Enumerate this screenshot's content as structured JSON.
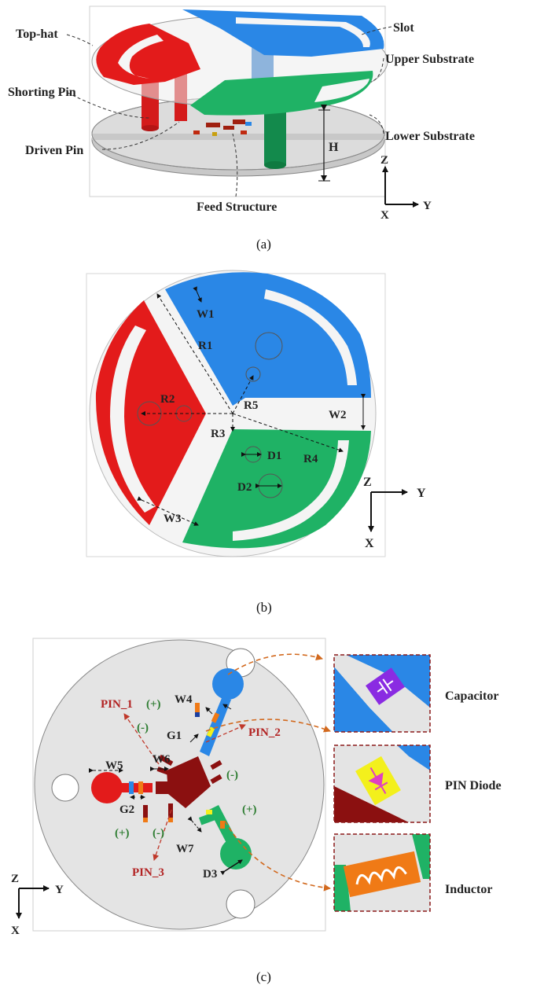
{
  "panel_a": {
    "labels": {
      "top_hat": "Top-hat",
      "slot": "Slot",
      "upper_substrate": "Upper Substrate",
      "shorting_pin": "Shorting Pin",
      "lower_substrate": "Lower Substrate",
      "driven_pin": "Driven Pin",
      "h": "H",
      "feed_structure": "Feed Structure"
    },
    "axes": {
      "z": "Z",
      "x": "X",
      "y": "Y"
    },
    "caption": "(a)"
  },
  "panel_b": {
    "labels": {
      "w1": "W1",
      "r1": "R1",
      "r2": "R2",
      "r5": "R5",
      "w2": "W2",
      "r3": "R3",
      "d1": "D1",
      "r4": "R4",
      "d2": "D2",
      "w3": "W3"
    },
    "axes": {
      "z": "Z",
      "y": "Y",
      "x": "X"
    },
    "caption": "(b)"
  },
  "panel_c": {
    "labels": {
      "pin_1": "PIN_1",
      "plus_1": "(+)",
      "w4": "W4",
      "pin_2": "PIN_2",
      "minus_1": "(-)",
      "g1": "G1",
      "w5": "W5",
      "w6": "W6",
      "minus_2": "(-)",
      "plus_2": "(+)",
      "g2": "G2",
      "plus_3": "(+)",
      "minus_3": "(-)",
      "w7": "W7",
      "pin_3": "PIN_3",
      "d3": "D3"
    },
    "legend": {
      "capacitor": "Capacitor",
      "pin_diode": "PIN Diode",
      "inductor": "Inductor"
    },
    "axes": {
      "z": "Z",
      "y": "Y",
      "x": "X"
    },
    "caption": "(c)"
  },
  "colors": {
    "red": "#e31b1b",
    "blue": "#2a87e6",
    "green": "#1fb265",
    "dark_red": "#8b1010",
    "gray": "#e4e4e4",
    "orange": "#f07a16",
    "purple": "#8a2be2",
    "yellow": "#f3f01c"
  }
}
